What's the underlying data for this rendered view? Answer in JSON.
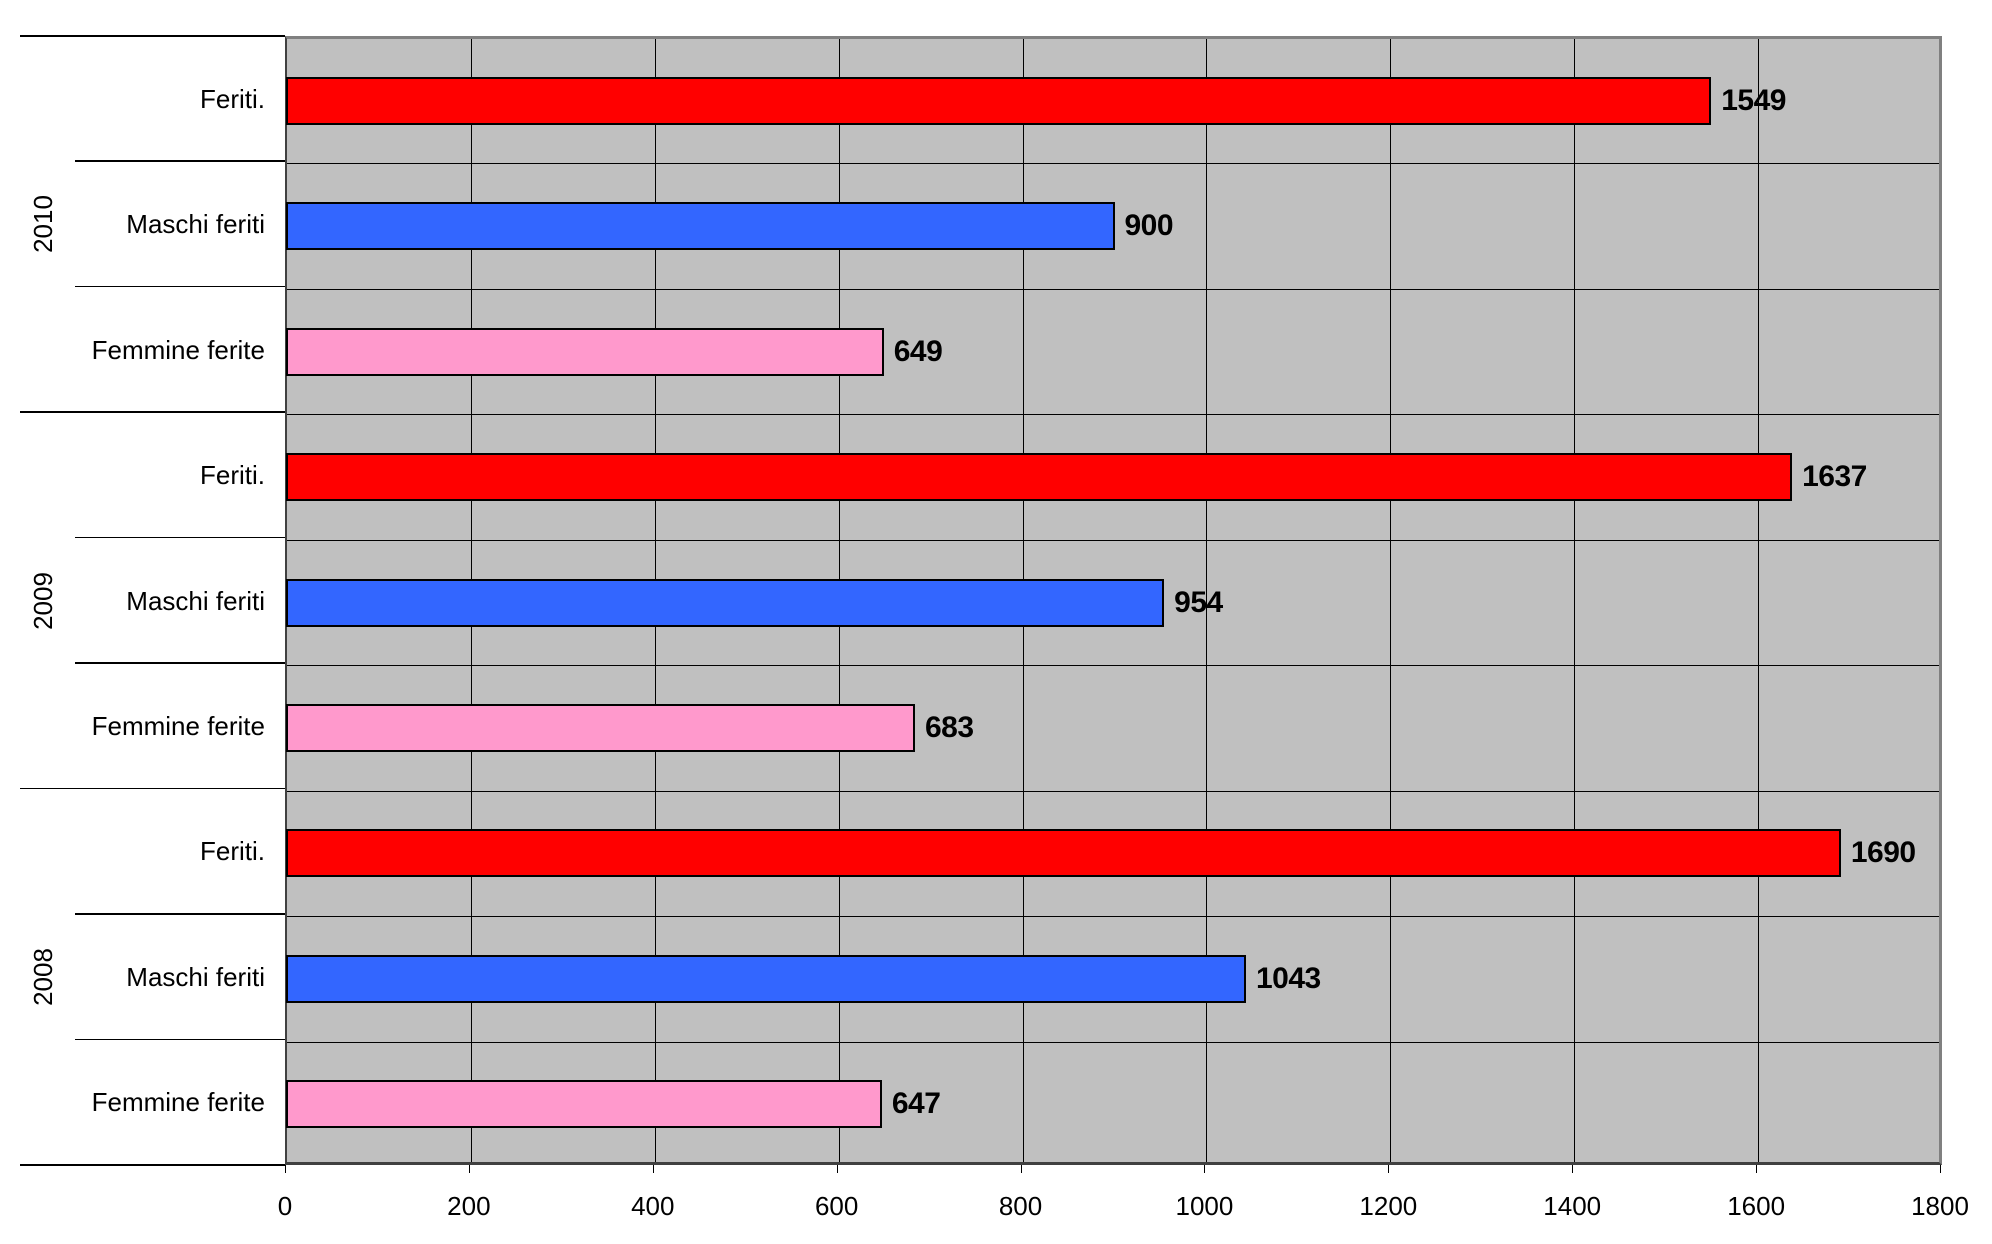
{
  "chart_data": {
    "type": "bar",
    "orientation": "horizontal",
    "title": "",
    "xlabel": "",
    "ylabel": "",
    "xlim": [
      0,
      1800
    ],
    "x_ticks": [
      0,
      200,
      400,
      600,
      800,
      1000,
      1200,
      1400,
      1600,
      1800
    ],
    "grid": true,
    "legend": null,
    "groups": [
      {
        "year": "2010",
        "items": [
          {
            "category": "Feriti.",
            "value": 1549,
            "color": "#ff0000"
          },
          {
            "category": "Maschi feriti",
            "value": 900,
            "color": "#3366ff"
          },
          {
            "category": "Femmine ferite",
            "value": 649,
            "color": "#ff99cc"
          }
        ]
      },
      {
        "year": "2009",
        "items": [
          {
            "category": "Feriti.",
            "value": 1637,
            "color": "#ff0000"
          },
          {
            "category": "Maschi feriti",
            "value": 954,
            "color": "#3366ff"
          },
          {
            "category": "Femmine ferite",
            "value": 683,
            "color": "#ff99cc"
          }
        ]
      },
      {
        "year": "2008",
        "items": [
          {
            "category": "Feriti.",
            "value": 1690,
            "color": "#ff0000"
          },
          {
            "category": "Maschi feriti",
            "value": 1043,
            "color": "#3366ff"
          },
          {
            "category": "Femmine ferite",
            "value": 647,
            "color": "#ff99cc"
          }
        ]
      }
    ],
    "categories": [
      "Feriti.",
      "Maschi feriti",
      "Femmine ferite"
    ],
    "series": [
      {
        "name": "2010",
        "values": [
          1549,
          900,
          649
        ]
      },
      {
        "name": "2009",
        "values": [
          1637,
          954,
          683
        ]
      },
      {
        "name": "2008",
        "values": [
          1690,
          1043,
          647
        ]
      }
    ]
  },
  "colors": {
    "plot_background": "#c0c0c0",
    "feriti": "#ff0000",
    "maschi": "#3366ff",
    "femmine": "#ff99cc",
    "gridline": "#000000"
  }
}
